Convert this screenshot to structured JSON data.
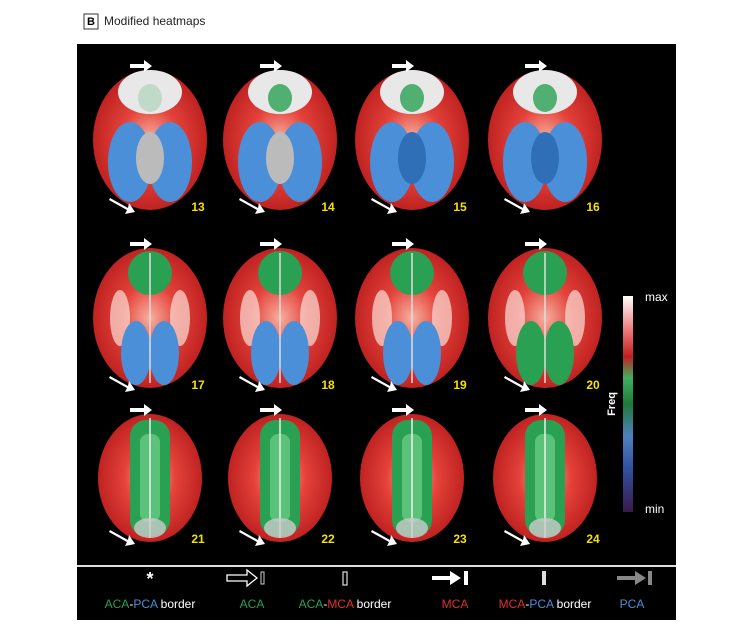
{
  "header": {
    "panel": "B",
    "title": "Modified heatmaps"
  },
  "slices": [
    "13",
    "14",
    "15",
    "16",
    "17",
    "18",
    "19",
    "20",
    "21",
    "22",
    "23",
    "24"
  ],
  "colorbar": {
    "max": "max",
    "label": "Freq",
    "min": "min"
  },
  "legend": [
    {
      "symbol": "*",
      "parts": [
        {
          "text": "ACA",
          "color": "#2aa052"
        },
        {
          "text": "-",
          "color": "#ffffff"
        },
        {
          "text": "PCA",
          "color": "#4a8fd8"
        },
        {
          "text": " border",
          "color": "#ffffff"
        }
      ]
    },
    {
      "parts": [
        {
          "text": "ACA",
          "color": "#2aa052"
        }
      ]
    },
    {
      "parts": [
        {
          "text": "ACA",
          "color": "#2aa052"
        },
        {
          "text": "-",
          "color": "#ffffff"
        },
        {
          "text": "MCA",
          "color": "#e0302a"
        },
        {
          "text": " border",
          "color": "#ffffff"
        }
      ]
    },
    {
      "parts": [
        {
          "text": "MCA",
          "color": "#e0302a"
        }
      ]
    },
    {
      "parts": [
        {
          "text": "MCA",
          "color": "#e0302a"
        },
        {
          "text": "-",
          "color": "#ffffff"
        },
        {
          "text": "PCA",
          "color": "#4a8fd8"
        },
        {
          "text": " border",
          "color": "#ffffff"
        }
      ]
    },
    {
      "parts": [
        {
          "text": "PCA",
          "color": "#4a8fd8"
        }
      ]
    }
  ]
}
